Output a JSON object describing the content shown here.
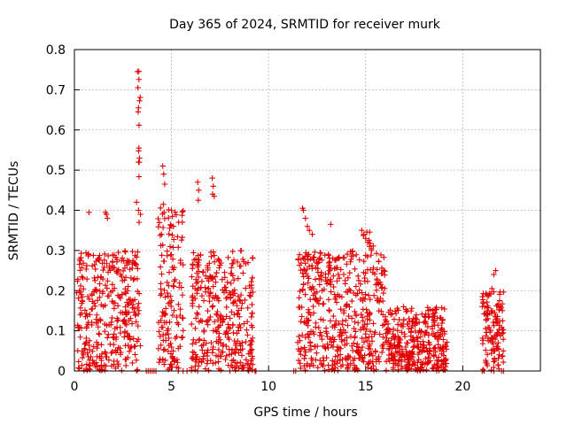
{
  "chart_data": {
    "type": "scatter",
    "title": "Day 365 of 2024, SRMTID for receiver murk",
    "xlabel": "GPS time / hours",
    "ylabel": "SRMTID / TECUs",
    "xlim": [
      0,
      24
    ],
    "ylim": [
      0,
      0.8
    ],
    "x_ticks": [
      "0",
      "5",
      "10",
      "15",
      "20"
    ],
    "y_ticks": [
      "0",
      "0.1",
      "0.2",
      "0.3",
      "0.4",
      "0.5",
      "0.6",
      "0.7",
      "0.8"
    ],
    "grid": true,
    "marker": "plus",
    "color": "#e00000",
    "clusters": [
      {
        "x": [
          0.1,
          3.3
        ],
        "y_max": 0.3
      },
      {
        "x": [
          3.3,
          3.4
        ],
        "y_max": 0.75
      },
      {
        "x": [
          4.3,
          5.6
        ],
        "y_max": 0.42
      },
      {
        "x": [
          6.0,
          9.2
        ],
        "y_max": 0.3
      },
      {
        "x": [
          11.5,
          14.8
        ],
        "y_max": 0.3
      },
      {
        "x": [
          14.8,
          16.0
        ],
        "y_max": 0.35
      },
      {
        "x": [
          16.0,
          19.2
        ],
        "y_max": 0.16
      },
      {
        "x": [
          21.0,
          22.1
        ],
        "y_max": 0.2
      }
    ],
    "points": [
      [
        3.25,
        0.745
      ],
      [
        3.27,
        0.705
      ],
      [
        3.3,
        0.655
      ],
      [
        3.28,
        0.645
      ],
      [
        3.32,
        0.555
      ],
      [
        3.35,
        0.53
      ],
      [
        3.31,
        0.52
      ],
      [
        4.55,
        0.51
      ],
      [
        4.6,
        0.49
      ],
      [
        4.65,
        0.465
      ],
      [
        4.58,
        0.415
      ],
      [
        4.62,
        0.395
      ],
      [
        6.35,
        0.47
      ],
      [
        6.4,
        0.45
      ],
      [
        6.38,
        0.425
      ],
      [
        7.1,
        0.48
      ],
      [
        7.15,
        0.46
      ],
      [
        7.12,
        0.44
      ],
      [
        7.2,
        0.435
      ],
      [
        3.2,
        0.42
      ],
      [
        3.3,
        0.4
      ],
      [
        3.4,
        0.39
      ],
      [
        3.33,
        0.37
      ],
      [
        5.0,
        0.4
      ],
      [
        5.05,
        0.385
      ],
      [
        5.1,
        0.36
      ],
      [
        0.75,
        0.395
      ],
      [
        1.6,
        0.395
      ],
      [
        1.65,
        0.39
      ],
      [
        1.7,
        0.38
      ],
      [
        11.75,
        0.405
      ],
      [
        11.8,
        0.4
      ],
      [
        11.9,
        0.38
      ],
      [
        12.0,
        0.36
      ],
      [
        12.1,
        0.35
      ],
      [
        12.25,
        0.34
      ],
      [
        13.2,
        0.365
      ],
      [
        14.8,
        0.35
      ],
      [
        14.9,
        0.34
      ],
      [
        15.0,
        0.33
      ],
      [
        15.1,
        0.32
      ],
      [
        15.2,
        0.31
      ],
      [
        15.3,
        0.3
      ],
      [
        21.7,
        0.25
      ],
      [
        21.6,
        0.24
      ],
      [
        21.5,
        0.205
      ],
      [
        21.9,
        0.175
      ],
      [
        21.95,
        0.16
      ]
    ],
    "zero_markers": [
      3.7,
      3.8,
      3.9,
      4.0,
      4.1,
      4.2,
      5.35,
      5.6,
      5.8,
      6.35,
      8.0,
      9.3,
      9.35,
      11.3,
      11.4,
      21.0,
      21.1,
      21.6,
      22.0,
      22.1
    ]
  }
}
